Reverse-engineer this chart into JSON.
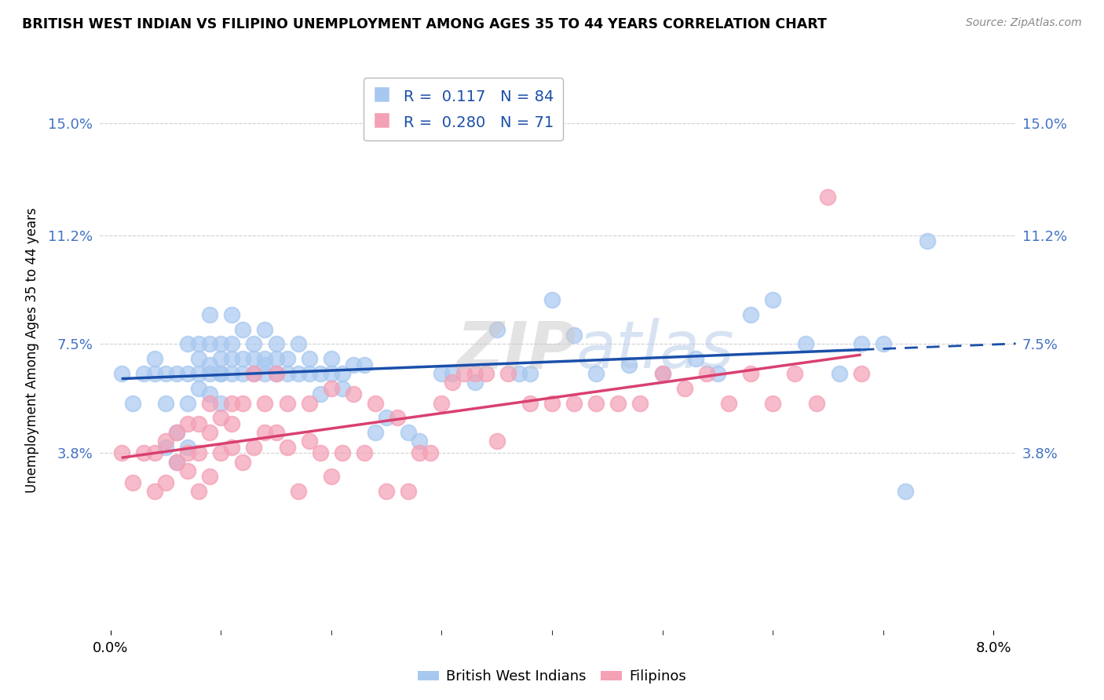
{
  "title": "BRITISH WEST INDIAN VS FILIPINO UNEMPLOYMENT AMONG AGES 35 TO 44 YEARS CORRELATION CHART",
  "source": "Source: ZipAtlas.com",
  "ylabel": "Unemployment Among Ages 35 to 44 years",
  "xlim": [
    -0.001,
    0.082
  ],
  "ylim": [
    -0.022,
    0.168
  ],
  "ytick_positions": [
    0.038,
    0.075,
    0.112,
    0.15
  ],
  "ytick_labels": [
    "3.8%",
    "7.5%",
    "11.2%",
    "15.0%"
  ],
  "legend_R_bwi": "0.117",
  "legend_N_bwi": "84",
  "legend_R_fil": "0.280",
  "legend_N_fil": "71",
  "color_bwi": "#a8c8f0",
  "color_fil": "#f4a0b5",
  "trendline_bwi_color": "#1a4faa",
  "trendline_fil_color": "#d94070",
  "background_color": "#ffffff",
  "grid_color": "#d0d0d0",
  "watermark_color": "#d8d8d8",
  "title_color": "#000000",
  "source_color": "#888888",
  "axis_label_color": "#000000",
  "ytick_color": "#4472c4",
  "xtick_color": "#000000",
  "legend_text_color": "#1a4faa",
  "bwi_x": [
    0.001,
    0.002,
    0.003,
    0.004,
    0.004,
    0.005,
    0.005,
    0.005,
    0.006,
    0.006,
    0.006,
    0.007,
    0.007,
    0.007,
    0.007,
    0.008,
    0.008,
    0.008,
    0.008,
    0.009,
    0.009,
    0.009,
    0.009,
    0.009,
    0.01,
    0.01,
    0.01,
    0.01,
    0.01,
    0.011,
    0.011,
    0.011,
    0.011,
    0.012,
    0.012,
    0.012,
    0.013,
    0.013,
    0.013,
    0.014,
    0.014,
    0.014,
    0.014,
    0.015,
    0.015,
    0.015,
    0.016,
    0.016,
    0.017,
    0.017,
    0.018,
    0.018,
    0.019,
    0.019,
    0.02,
    0.02,
    0.021,
    0.021,
    0.022,
    0.023,
    0.024,
    0.025,
    0.027,
    0.028,
    0.03,
    0.031,
    0.033,
    0.035,
    0.037,
    0.038,
    0.04,
    0.042,
    0.044,
    0.047,
    0.05,
    0.053,
    0.055,
    0.058,
    0.06,
    0.063,
    0.066,
    0.068,
    0.07,
    0.072,
    0.074
  ],
  "bwi_y": [
    0.065,
    0.055,
    0.065,
    0.065,
    0.07,
    0.04,
    0.055,
    0.065,
    0.035,
    0.045,
    0.065,
    0.04,
    0.055,
    0.065,
    0.075,
    0.06,
    0.065,
    0.07,
    0.075,
    0.058,
    0.065,
    0.068,
    0.075,
    0.085,
    0.055,
    0.065,
    0.065,
    0.07,
    0.075,
    0.065,
    0.07,
    0.075,
    0.085,
    0.065,
    0.07,
    0.08,
    0.065,
    0.07,
    0.075,
    0.065,
    0.068,
    0.07,
    0.08,
    0.065,
    0.07,
    0.075,
    0.065,
    0.07,
    0.065,
    0.075,
    0.065,
    0.07,
    0.065,
    0.058,
    0.065,
    0.07,
    0.065,
    0.06,
    0.068,
    0.068,
    0.045,
    0.05,
    0.045,
    0.042,
    0.065,
    0.065,
    0.062,
    0.08,
    0.065,
    0.065,
    0.09,
    0.078,
    0.065,
    0.068,
    0.065,
    0.07,
    0.065,
    0.085,
    0.09,
    0.075,
    0.065,
    0.075,
    0.075,
    0.025,
    0.11
  ],
  "fil_x": [
    0.001,
    0.002,
    0.003,
    0.004,
    0.004,
    0.005,
    0.005,
    0.006,
    0.006,
    0.007,
    0.007,
    0.007,
    0.008,
    0.008,
    0.008,
    0.009,
    0.009,
    0.009,
    0.01,
    0.01,
    0.011,
    0.011,
    0.011,
    0.012,
    0.012,
    0.013,
    0.013,
    0.014,
    0.014,
    0.015,
    0.015,
    0.016,
    0.016,
    0.017,
    0.018,
    0.018,
    0.019,
    0.02,
    0.02,
    0.021,
    0.022,
    0.023,
    0.024,
    0.025,
    0.026,
    0.027,
    0.028,
    0.029,
    0.03,
    0.031,
    0.032,
    0.033,
    0.034,
    0.035,
    0.036,
    0.038,
    0.04,
    0.042,
    0.044,
    0.046,
    0.048,
    0.05,
    0.052,
    0.054,
    0.056,
    0.058,
    0.06,
    0.062,
    0.064,
    0.065,
    0.068
  ],
  "fil_y": [
    0.038,
    0.028,
    0.038,
    0.025,
    0.038,
    0.028,
    0.042,
    0.035,
    0.045,
    0.032,
    0.038,
    0.048,
    0.025,
    0.038,
    0.048,
    0.03,
    0.045,
    0.055,
    0.038,
    0.05,
    0.04,
    0.048,
    0.055,
    0.035,
    0.055,
    0.04,
    0.065,
    0.045,
    0.055,
    0.045,
    0.065,
    0.04,
    0.055,
    0.025,
    0.055,
    0.042,
    0.038,
    0.03,
    0.06,
    0.038,
    0.058,
    0.038,
    0.055,
    0.025,
    0.05,
    0.025,
    0.038,
    0.038,
    0.055,
    0.062,
    0.065,
    0.065,
    0.065,
    0.042,
    0.065,
    0.055,
    0.055,
    0.055,
    0.055,
    0.055,
    0.055,
    0.065,
    0.06,
    0.065,
    0.055,
    0.065,
    0.055,
    0.065,
    0.055,
    0.125,
    0.065
  ]
}
